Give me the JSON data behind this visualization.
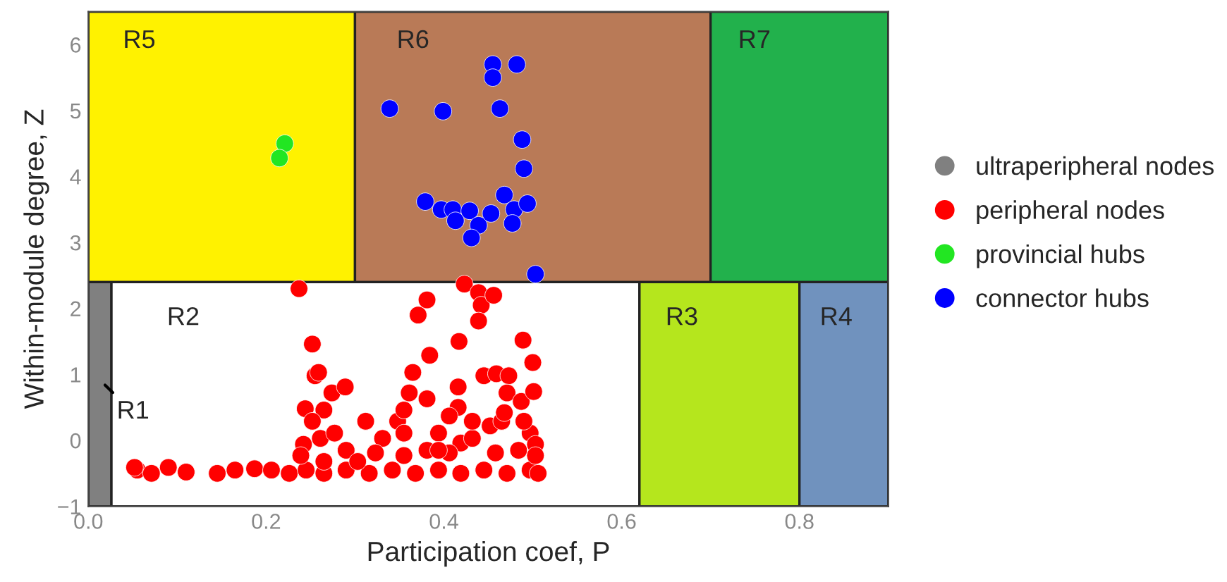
{
  "chart_data": {
    "type": "scatter",
    "xlabel": "Participation coef, P",
    "ylabel": "Within-module degree, Z",
    "xlim": [
      0,
      0.9
    ],
    "ylim": [
      -1,
      6.5
    ],
    "xticks": [
      {
        "value": 0,
        "label": "0.0"
      },
      {
        "value": 0.2,
        "label": "0.2"
      },
      {
        "value": 0.4,
        "label": "0.4"
      },
      {
        "value": 0.6,
        "label": "0.6"
      },
      {
        "value": 0.8,
        "label": "0.8"
      }
    ],
    "yticks": [
      {
        "value": -1,
        "label": "−1"
      },
      0,
      1,
      2,
      3,
      4,
      5,
      6
    ],
    "marker": "circle",
    "grid": false,
    "legend": "right",
    "bands": [
      {
        "axis": "x",
        "from": 0,
        "to": 0.026,
        "label": "R1",
        "color": "#808080"
      },
      {
        "axis": "x",
        "from": 0.026,
        "to": 0.62,
        "label": "R2",
        "color": "#ffffff"
      },
      {
        "axis": "x",
        "from": 0.62,
        "to": 0.8,
        "label": "R3",
        "color": "#b5e61d"
      },
      {
        "axis": "x",
        "from": 0.8,
        "to": 0.9,
        "label": "R4",
        "color": "#7092be"
      },
      {
        "axis": "x",
        "from": 0,
        "to": 0.3,
        "label": "R5",
        "color": "#fff200"
      },
      {
        "axis": "x",
        "from": 0.3,
        "to": 0.7,
        "label": "R6",
        "color": "#b97a57"
      },
      {
        "axis": "x",
        "from": 0.7,
        "to": 0.9,
        "label": "R7",
        "color": "#22b14c"
      }
    ],
    "ref_lines": [
      {
        "axis": "y",
        "value": 2.4,
        "color": "#222222"
      }
    ],
    "series": [
      {
        "name": "ultraperipheral nodes",
        "color": "#808080"
      },
      {
        "name": "peripheral nodes",
        "color": "#ff0000",
        "x": [
          0.055,
          0.071,
          0.09,
          0.11,
          0.145,
          0.165,
          0.187,
          0.206,
          0.226,
          0.245,
          0.265,
          0.29,
          0.316,
          0.342,
          0.368,
          0.394,
          0.419,
          0.445,
          0.471,
          0.497,
          0.506,
          0.052,
          0.237,
          0.252,
          0.255,
          0.259,
          0.274,
          0.289,
          0.244,
          0.265,
          0.312,
          0.242,
          0.261,
          0.277,
          0.29,
          0.331,
          0.348,
          0.361,
          0.365,
          0.371,
          0.381,
          0.384,
          0.381,
          0.355,
          0.394,
          0.417,
          0.416,
          0.416,
          0.419,
          0.423,
          0.439,
          0.442,
          0.439,
          0.456,
          0.445,
          0.459,
          0.473,
          0.471,
          0.487,
          0.489,
          0.5,
          0.501,
          0.452,
          0.465,
          0.468,
          0.432,
          0.497,
          0.503,
          0.503,
          0.323,
          0.252,
          0.239,
          0.265,
          0.303,
          0.355,
          0.381,
          0.406,
          0.458,
          0.484,
          0.49,
          0.355,
          0.406,
          0.432,
          0.394
        ],
        "values": [
          -0.45,
          -0.5,
          -0.41,
          -0.48,
          -0.5,
          -0.45,
          -0.43,
          -0.45,
          -0.5,
          -0.45,
          -0.5,
          -0.45,
          -0.5,
          -0.45,
          -0.5,
          -0.45,
          -0.5,
          -0.45,
          -0.5,
          -0.45,
          -0.5,
          -0.41,
          2.3,
          1.46,
          0.98,
          1.03,
          0.72,
          0.81,
          0.48,
          0.46,
          0.29,
          -0.06,
          0.03,
          0.11,
          -0.15,
          0.03,
          0.29,
          0.72,
          1.03,
          1.9,
          2.13,
          1.29,
          0.63,
          0.46,
          0.11,
          1.5,
          0.81,
          0.5,
          -0.04,
          2.37,
          2.24,
          2.05,
          1.81,
          2.2,
          0.98,
          1.01,
          0.98,
          0.72,
          0.59,
          1.52,
          1.18,
          0.74,
          0.22,
          0.29,
          0.42,
          0.03,
          0.11,
          -0.06,
          -0.23,
          -0.19,
          0.29,
          -0.23,
          -0.32,
          -0.32,
          -0.23,
          -0.15,
          -0.19,
          -0.19,
          -0.15,
          0.29,
          0.11,
          0.37,
          0.29,
          -0.15
        ]
      },
      {
        "name": "provincial hubs",
        "color": "#22e622",
        "x": [
          0.221,
          0.215
        ],
        "values": [
          4.5,
          4.28
        ]
      },
      {
        "name": "connector hubs",
        "color": "#0000ff",
        "x": [
          0.339,
          0.399,
          0.455,
          0.455,
          0.482,
          0.463,
          0.488,
          0.49,
          0.503,
          0.379,
          0.397,
          0.41,
          0.413,
          0.429,
          0.439,
          0.431,
          0.453,
          0.468,
          0.479,
          0.494,
          0.477
        ],
        "values": [
          5.03,
          4.99,
          5.7,
          5.5,
          5.7,
          5.03,
          4.56,
          4.12,
          2.52,
          3.62,
          3.5,
          3.5,
          3.33,
          3.48,
          3.26,
          3.07,
          3.44,
          3.72,
          3.5,
          3.59,
          3.29
        ]
      }
    ]
  }
}
